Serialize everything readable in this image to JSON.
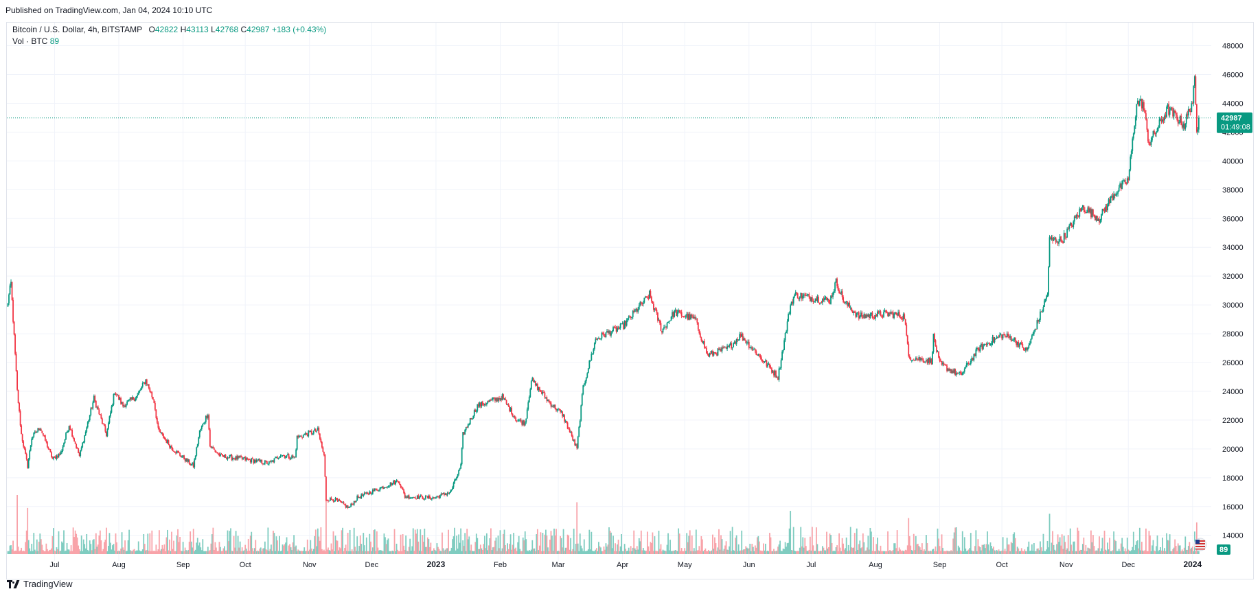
{
  "header": {
    "published": "Published on TradingView.com, Jan 04, 2024 10:10 UTC"
  },
  "legend": {
    "symbol": "Bitcoin / U.S. Dollar, 4h, BITSTAMP",
    "o_label": "O",
    "o_value": "42822",
    "h_label": "H",
    "h_value": "43113",
    "l_label": "L",
    "l_value": "42768",
    "c_label": "C",
    "c_value": "42987",
    "change": "+183 (+0.43%)",
    "vol_label": "Vol · BTC",
    "vol_value": "89"
  },
  "price_tag": {
    "price": "42987",
    "countdown": "01:49:08"
  },
  "volume_tag": {
    "value": "89"
  },
  "footer": {
    "brand": "TradingView"
  },
  "colors": {
    "up": "#089981",
    "down": "#f23645",
    "up_vol": "#7fccc0",
    "down_vol": "#f8a3a9",
    "grid": "#f0f3fa",
    "text": "#131722"
  },
  "chart_data": {
    "type": "candlestick",
    "timeframe": "4h",
    "x_tick_labels": [
      "Jul",
      "Aug",
      "Sep",
      "Oct",
      "Nov",
      "Dec",
      "2023",
      "Feb",
      "Mar",
      "Apr",
      "May",
      "Jun",
      "Jul",
      "Aug",
      "Sep",
      "Oct",
      "Nov",
      "Dec",
      "2024"
    ],
    "y_tick_labels": [
      "14000",
      "16000",
      "18000",
      "20000",
      "22000",
      "24000",
      "26000",
      "28000",
      "30000",
      "32000",
      "34000",
      "36000",
      "38000",
      "40000",
      "42000",
      "44000",
      "46000",
      "48000"
    ],
    "ylim": [
      12700,
      49600
    ],
    "x_range": [
      "2022-06-08",
      "2024-01-10"
    ],
    "last_price": 42987,
    "close_path": [
      [
        "2022-06-08",
        29800
      ],
      [
        "2022-06-10",
        31500
      ],
      [
        "2022-06-13",
        24000
      ],
      [
        "2022-06-15",
        21000
      ],
      [
        "2022-06-18",
        18800
      ],
      [
        "2022-06-20",
        20800
      ],
      [
        "2022-06-24",
        21500
      ],
      [
        "2022-06-30",
        19300
      ],
      [
        "2022-07-04",
        19700
      ],
      [
        "2022-07-08",
        21700
      ],
      [
        "2022-07-13",
        19500
      ],
      [
        "2022-07-20",
        23500
      ],
      [
        "2022-07-26",
        21000
      ],
      [
        "2022-07-30",
        24000
      ],
      [
        "2022-08-03",
        23000
      ],
      [
        "2022-08-10",
        23700
      ],
      [
        "2022-08-14",
        24800
      ],
      [
        "2022-08-18",
        23300
      ],
      [
        "2022-08-20",
        21300
      ],
      [
        "2022-08-27",
        20000
      ],
      [
        "2022-09-06",
        18800
      ],
      [
        "2022-09-09",
        21200
      ],
      [
        "2022-09-13",
        22500
      ],
      [
        "2022-09-14",
        20200
      ],
      [
        "2022-09-19",
        19500
      ],
      [
        "2022-09-30",
        19300
      ],
      [
        "2022-10-13",
        19000
      ],
      [
        "2022-10-18",
        19600
      ],
      [
        "2022-10-25",
        19400
      ],
      [
        "2022-10-26",
        20800
      ],
      [
        "2022-11-05",
        21300
      ],
      [
        "2022-11-08",
        19500
      ],
      [
        "2022-11-09",
        16500
      ],
      [
        "2022-11-13",
        16500
      ],
      [
        "2022-11-20",
        15900
      ],
      [
        "2022-11-24",
        16600
      ],
      [
        "2022-12-02",
        17100
      ],
      [
        "2022-12-14",
        17800
      ],
      [
        "2022-12-17",
        16700
      ],
      [
        "2022-12-31",
        16600
      ],
      [
        "2023-01-08",
        17000
      ],
      [
        "2023-01-13",
        18800
      ],
      [
        "2023-01-14",
        21000
      ],
      [
        "2023-01-21",
        23000
      ],
      [
        "2023-02-02",
        23600
      ],
      [
        "2023-02-09",
        22000
      ],
      [
        "2023-02-13",
        21800
      ],
      [
        "2023-02-16",
        24800
      ],
      [
        "2023-02-25",
        23200
      ],
      [
        "2023-03-03",
        22400
      ],
      [
        "2023-03-10",
        20000
      ],
      [
        "2023-03-13",
        24300
      ],
      [
        "2023-03-19",
        27600
      ],
      [
        "2023-03-24",
        28000
      ],
      [
        "2023-04-01",
        28500
      ],
      [
        "2023-04-11",
        30200
      ],
      [
        "2023-04-14",
        30700
      ],
      [
        "2023-04-20",
        28200
      ],
      [
        "2023-04-26",
        29500
      ],
      [
        "2023-05-06",
        29000
      ],
      [
        "2023-05-12",
        26500
      ],
      [
        "2023-05-22",
        27000
      ],
      [
        "2023-05-28",
        27900
      ],
      [
        "2023-06-10",
        25800
      ],
      [
        "2023-06-15",
        25000
      ],
      [
        "2023-06-21",
        30000
      ],
      [
        "2023-06-23",
        30700
      ],
      [
        "2023-07-10",
        30300
      ],
      [
        "2023-07-13",
        31600
      ],
      [
        "2023-07-17",
        30200
      ],
      [
        "2023-07-24",
        29200
      ],
      [
        "2023-08-08",
        29400
      ],
      [
        "2023-08-15",
        29200
      ],
      [
        "2023-08-17",
        26400
      ],
      [
        "2023-08-28",
        26100
      ],
      [
        "2023-08-29",
        27800
      ],
      [
        "2023-09-01",
        25900
      ],
      [
        "2023-09-11",
        25100
      ],
      [
        "2023-09-20",
        27000
      ],
      [
        "2023-10-01",
        27900
      ],
      [
        "2023-10-06",
        27700
      ],
      [
        "2023-10-13",
        26800
      ],
      [
        "2023-10-20",
        29500
      ],
      [
        "2023-10-23",
        30800
      ],
      [
        "2023-10-24",
        34500
      ],
      [
        "2023-10-30",
        34500
      ],
      [
        "2023-11-09",
        36800
      ],
      [
        "2023-11-17",
        36000
      ],
      [
        "2023-11-24",
        37700
      ],
      [
        "2023-12-01",
        38700
      ],
      [
        "2023-12-05",
        44000
      ],
      [
        "2023-12-08",
        44000
      ],
      [
        "2023-12-11",
        41200
      ],
      [
        "2023-12-20",
        43600
      ],
      [
        "2023-12-28",
        42500
      ],
      [
        "2024-01-01",
        44200
      ],
      [
        "2024-01-02",
        45500
      ],
      [
        "2024-01-03",
        42000
      ],
      [
        "2024-01-04",
        42987
      ]
    ],
    "volume_spikes": [
      [
        "2022-06-13",
        16800
      ],
      [
        "2022-06-18",
        15900
      ],
      [
        "2022-11-09",
        16500
      ],
      [
        "2023-03-10",
        16300
      ],
      [
        "2023-06-21",
        15700
      ],
      [
        "2023-08-17",
        15200
      ],
      [
        "2023-10-24",
        15500
      ],
      [
        "2024-01-03",
        14900
      ]
    ]
  }
}
